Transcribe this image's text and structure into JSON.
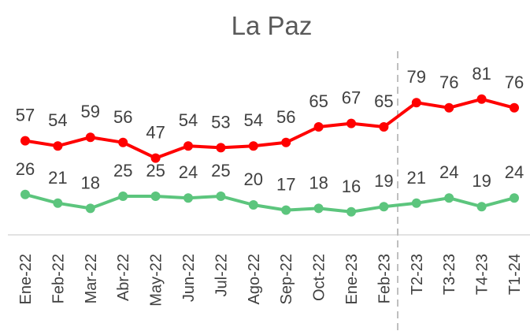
{
  "chart_data": {
    "type": "line",
    "title": "La Paz",
    "categories": [
      "Ene-22",
      "Feb-22",
      "Mar-22",
      "Abr-22",
      "May-22",
      "Jun-22",
      "Jul-22",
      "Ago-22",
      "Sep-22",
      "Oct-22",
      "Ene-23",
      "Feb-23",
      "T2-23",
      "T3-23",
      "T4-23",
      "T1-24"
    ],
    "series": [
      {
        "color": "#ff0000",
        "values": [
          57,
          54,
          59,
          56,
          47,
          54,
          53,
          54,
          56,
          65,
          67,
          65,
          79,
          76,
          81,
          76
        ]
      },
      {
        "color": "#5cc57d",
        "values": [
          26,
          21,
          18,
          25,
          25,
          24,
          25,
          20,
          17,
          18,
          16,
          19,
          21,
          24,
          19,
          24
        ]
      }
    ]
  }
}
